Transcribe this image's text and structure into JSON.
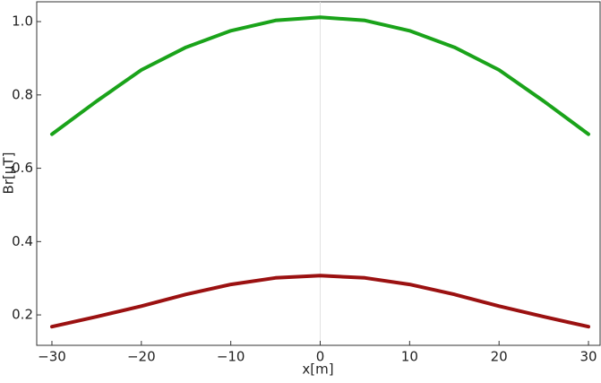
{
  "chart_data": {
    "type": "line",
    "xlabel": "x[m]",
    "ylabel": "Br[μT]",
    "x": [
      -30,
      -25,
      -20,
      -15,
      -10,
      -5,
      0,
      5,
      10,
      15,
      20,
      25,
      30
    ],
    "series": [
      {
        "color": "#1aa31a",
        "values": [
          0.693,
          0.783,
          0.868,
          0.93,
          0.975,
          1.003,
          1.012,
          1.003,
          0.975,
          0.93,
          0.868,
          0.783,
          0.693
        ]
      },
      {
        "color": "#9b1111",
        "values": [
          0.168,
          0.195,
          0.224,
          0.256,
          0.283,
          0.301,
          0.307,
          0.301,
          0.283,
          0.256,
          0.224,
          0.195,
          0.168
        ]
      }
    ],
    "vlines": [
      0
    ],
    "xlim": [
      -31.7,
      31.3
    ],
    "ylim": [
      0.117,
      1.054
    ],
    "xticks": [
      {
        "value": -30,
        "label": "−30"
      },
      {
        "value": -20,
        "label": "−20"
      },
      {
        "value": -10,
        "label": "−10"
      },
      0,
      10,
      20,
      30
    ],
    "yticks": [
      0.2,
      0.4,
      0.6,
      0.8,
      {
        "value": 1,
        "label": "1.0"
      }
    ]
  }
}
